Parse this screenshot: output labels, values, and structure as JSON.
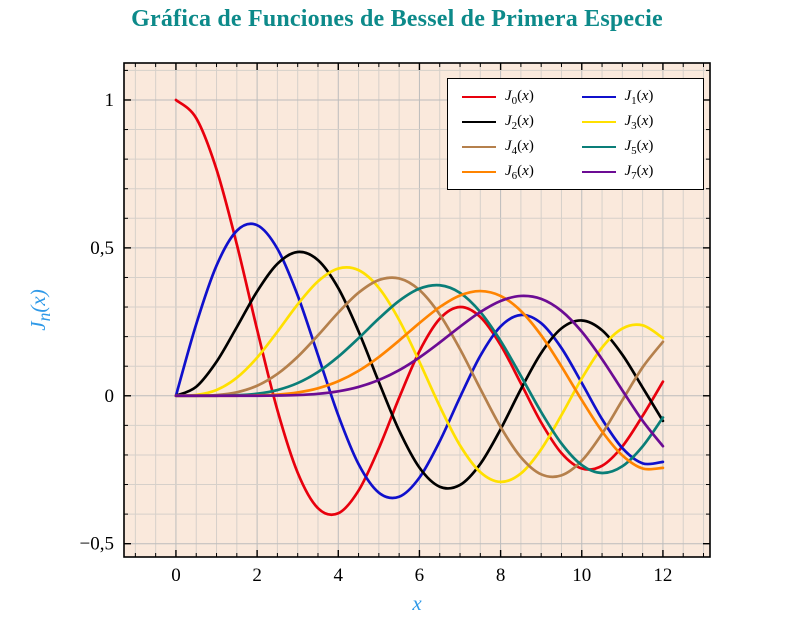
{
  "title": "Gráfica de Funciones de Bessel de Primera Especie",
  "colors": {
    "title": "#0d8a8a",
    "axis_label": "#2f99e8",
    "plot_bg": "#fae9dc",
    "grid_major": "#bcbcbc",
    "grid_minor": "#d6d0ca",
    "frame": "#000000",
    "tick": "#000000",
    "tick_label": "#000000",
    "legend_bg": "#ffffff",
    "legend_border": "#000000"
  },
  "chart_data": {
    "type": "line",
    "title": "Gráfica de Funciones de Bessel de Primera Especie",
    "xlabel": "x",
    "ylabel": "J_n(x)",
    "xlim": [
      -1.28,
      13.16
    ],
    "ylim": [
      -0.545,
      1.125
    ],
    "grid": "both",
    "legend_position": "top-right",
    "x_ticks": {
      "major": [
        0,
        2,
        4,
        6,
        8,
        10,
        12
      ],
      "labels": [
        "0",
        "2",
        "4",
        "6",
        "8",
        "10",
        "12"
      ],
      "minor_step": 0.5
    },
    "y_ticks": {
      "major": [
        -0.5,
        0,
        0.5,
        1
      ],
      "labels": [
        "−0,5",
        "0",
        "0,5",
        "1"
      ],
      "minor_step": 0.1
    },
    "x": [
      0,
      0.5,
      1,
      1.5,
      2,
      2.5,
      3,
      3.5,
      4,
      4.5,
      5,
      5.5,
      6,
      6.5,
      7,
      7.5,
      8,
      8.5,
      9,
      9.5,
      10,
      10.5,
      11,
      11.5,
      12
    ],
    "series": [
      {
        "name": "J_0(x)",
        "color": "#e8000d",
        "values": [
          1.0,
          0.9385,
          0.7652,
          0.5118,
          0.2239,
          -0.0484,
          -0.2601,
          -0.3801,
          -0.3971,
          -0.3205,
          -0.1776,
          -0.0068,
          0.1506,
          0.2601,
          0.3001,
          0.2663,
          0.1717,
          0.0419,
          -0.0903,
          -0.1939,
          -0.2459,
          -0.2366,
          -0.1712,
          -0.0677,
          0.0477
        ]
      },
      {
        "name": "J_1(x)",
        "color": "#1010cc",
        "values": [
          0.0,
          0.2423,
          0.4401,
          0.5579,
          0.5767,
          0.4971,
          0.3391,
          0.1374,
          -0.066,
          -0.2311,
          -0.3276,
          -0.3414,
          -0.2767,
          -0.1538,
          -0.0047,
          0.1352,
          0.2346,
          0.2731,
          0.2453,
          0.1613,
          0.0435,
          -0.0789,
          -0.1768,
          -0.2284,
          -0.2234
        ]
      },
      {
        "name": "J_2(x)",
        "color": "#000000",
        "values": [
          0.0,
          0.0306,
          0.1149,
          0.2321,
          0.3528,
          0.4461,
          0.4861,
          0.4586,
          0.3641,
          0.2178,
          0.0466,
          -0.1173,
          -0.2429,
          -0.3074,
          -0.3014,
          -0.2303,
          -0.113,
          0.0223,
          0.1448,
          0.2279,
          0.2546,
          0.2216,
          0.139,
          0.0279,
          -0.0849
        ]
      },
      {
        "name": "J_3(x)",
        "color": "#ffe000",
        "values": [
          0.0,
          0.0026,
          0.0196,
          0.061,
          0.1289,
          0.2166,
          0.3091,
          0.3868,
          0.4302,
          0.4247,
          0.3648,
          0.2561,
          0.1148,
          -0.0353,
          -0.1676,
          -0.2581,
          -0.2911,
          -0.2626,
          -0.1809,
          -0.0653,
          0.0584,
          0.1633,
          0.2273,
          0.2381,
          0.1951
        ]
      },
      {
        "name": "J_4(x)",
        "color": "#b5804c",
        "values": [
          0.0,
          0.0002,
          0.0025,
          0.0118,
          0.034,
          0.0738,
          0.132,
          0.2044,
          0.2811,
          0.3484,
          0.3912,
          0.3967,
          0.3576,
          0.2748,
          0.1578,
          0.0238,
          -0.1054,
          -0.2077,
          -0.2655,
          -0.2691,
          -0.2196,
          -0.1283,
          -0.015,
          0.0963,
          0.1825
        ]
      },
      {
        "name": "J_5(x)",
        "color": "#0a7e78",
        "values": [
          0.0,
          0.0,
          0.0002,
          0.0018,
          0.007,
          0.0195,
          0.043,
          0.0804,
          0.1321,
          0.1947,
          0.2611,
          0.3209,
          0.3621,
          0.3736,
          0.3479,
          0.2833,
          0.1858,
          0.0671,
          -0.055,
          -0.1613,
          -0.2341,
          -0.2611,
          -0.2383,
          -0.1711,
          -0.0735
        ]
      },
      {
        "name": "J_6(x)",
        "color": "#ff8400",
        "values": [
          0.0,
          0.0,
          0.0,
          0.0002,
          0.0012,
          0.0042,
          0.0114,
          0.0254,
          0.0491,
          0.0843,
          0.131,
          0.1868,
          0.2458,
          0.2999,
          0.3392,
          0.3541,
          0.3376,
          0.2867,
          0.2043,
          0.0993,
          -0.0145,
          -0.1203,
          -0.2016,
          -0.2458,
          -0.2437
        ]
      },
      {
        "name": "J_7(x)",
        "color": "#6c0c94",
        "values": [
          0.0,
          0.0,
          0.0,
          0.0,
          0.0002,
          0.0008,
          0.0025,
          0.0067,
          0.0152,
          0.03,
          0.0534,
          0.0866,
          0.1296,
          0.1801,
          0.2336,
          0.2832,
          0.3206,
          0.3376,
          0.3275,
          0.2868,
          0.2167,
          0.1236,
          0.0184,
          -0.0846,
          -0.1703
        ]
      }
    ]
  }
}
